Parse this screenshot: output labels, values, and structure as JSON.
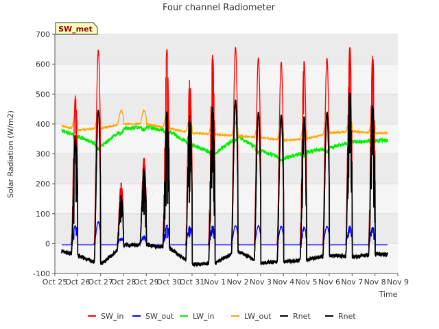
{
  "chart_data": {
    "type": "line",
    "title": "Four channel Radiometer",
    "xlabel": "Time",
    "ylabel": "Solar Radiation (W/m2)",
    "badge": "SW_met",
    "ylim": [
      -100,
      700
    ],
    "yticks": [
      -100,
      0,
      100,
      200,
      300,
      400,
      500,
      600,
      700
    ],
    "xlim": [
      0,
      15
    ],
    "x_tick_labels": [
      "Oct 25",
      "Oct 26",
      "Oct 27",
      "Oct 28",
      "Oct 29",
      "Oct 30",
      "Oct 31",
      "Nov 1",
      "Nov 2",
      "Nov 3",
      "Nov 4",
      "Nov 5",
      "Nov 6",
      "Nov 7",
      "Nov 8",
      "Nov 9"
    ],
    "x_unit": "days since Oct 25",
    "data_range": [
      0.3,
      14.55
    ],
    "noon": [
      {
        "day": 0.9,
        "sw_in": 495,
        "sw_out": 60,
        "rnet": 360,
        "cloudy": true
      },
      {
        "day": 1.9,
        "sw_in": 648,
        "sw_out": 72,
        "rnet": 448,
        "cloudy": false
      },
      {
        "day": 2.9,
        "sw_in": 205,
        "sw_out": 18,
        "rnet": 160,
        "cloudy": true
      },
      {
        "day": 3.9,
        "sw_in": 288,
        "sw_out": 25,
        "rnet": 248,
        "cloudy": true
      },
      {
        "day": 4.9,
        "sw_in": 650,
        "sw_out": 62,
        "rnet": 440,
        "cloudy": true
      },
      {
        "day": 5.9,
        "sw_in": 550,
        "sw_out": 58,
        "rnet": 430,
        "cloudy": true
      },
      {
        "day": 6.9,
        "sw_in": 632,
        "sw_out": 60,
        "rnet": 455,
        "cloudy": true
      },
      {
        "day": 7.9,
        "sw_in": 657,
        "sw_out": 60,
        "rnet": 480,
        "cloudy": false
      },
      {
        "day": 8.9,
        "sw_in": 622,
        "sw_out": 58,
        "rnet": 440,
        "cloudy": false
      },
      {
        "day": 9.9,
        "sw_in": 608,
        "sw_out": 56,
        "rnet": 430,
        "cloudy": false
      },
      {
        "day": 10.9,
        "sw_in": 610,
        "sw_out": 55,
        "rnet": 425,
        "cloudy": true
      },
      {
        "day": 11.9,
        "sw_in": 620,
        "sw_out": 57,
        "rnet": 438,
        "cloudy": false
      },
      {
        "day": 12.9,
        "sw_in": 660,
        "sw_out": 58,
        "rnet": 510,
        "cloudy": true
      },
      {
        "day": 13.9,
        "sw_in": 632,
        "sw_out": 55,
        "rnet": 465,
        "cloudy": true
      }
    ],
    "night_rnet": [
      -20,
      -40,
      -70,
      -5,
      -5,
      -15,
      -70,
      -65,
      -25,
      -65,
      -60,
      -55,
      -40,
      -45,
      -35
    ],
    "lw_in_daily": [
      385,
      360,
      325,
      385,
      390,
      375,
      330,
      300,
      360,
      310,
      285,
      305,
      320,
      340,
      345
    ],
    "lw_out_daily": [
      400,
      380,
      385,
      400,
      400,
      385,
      370,
      365,
      360,
      355,
      345,
      350,
      370,
      375,
      370
    ],
    "series": [
      {
        "name": "SW_in",
        "key": "sw_in",
        "color": "#ff0000"
      },
      {
        "name": "SW_out",
        "key": "sw_out",
        "color": "#0000ff"
      },
      {
        "name": "LW_in",
        "key": "lw_in",
        "color": "#00ee00"
      },
      {
        "name": "LW_out",
        "key": "lw_out",
        "color": "#ffa500"
      },
      {
        "name": "Rnet",
        "key": "rnet",
        "color": "#000000"
      },
      {
        "name": "Rnet",
        "key": "rnet2",
        "color": "#000000"
      }
    ],
    "grid": true,
    "legend_position": "bottom-center"
  }
}
